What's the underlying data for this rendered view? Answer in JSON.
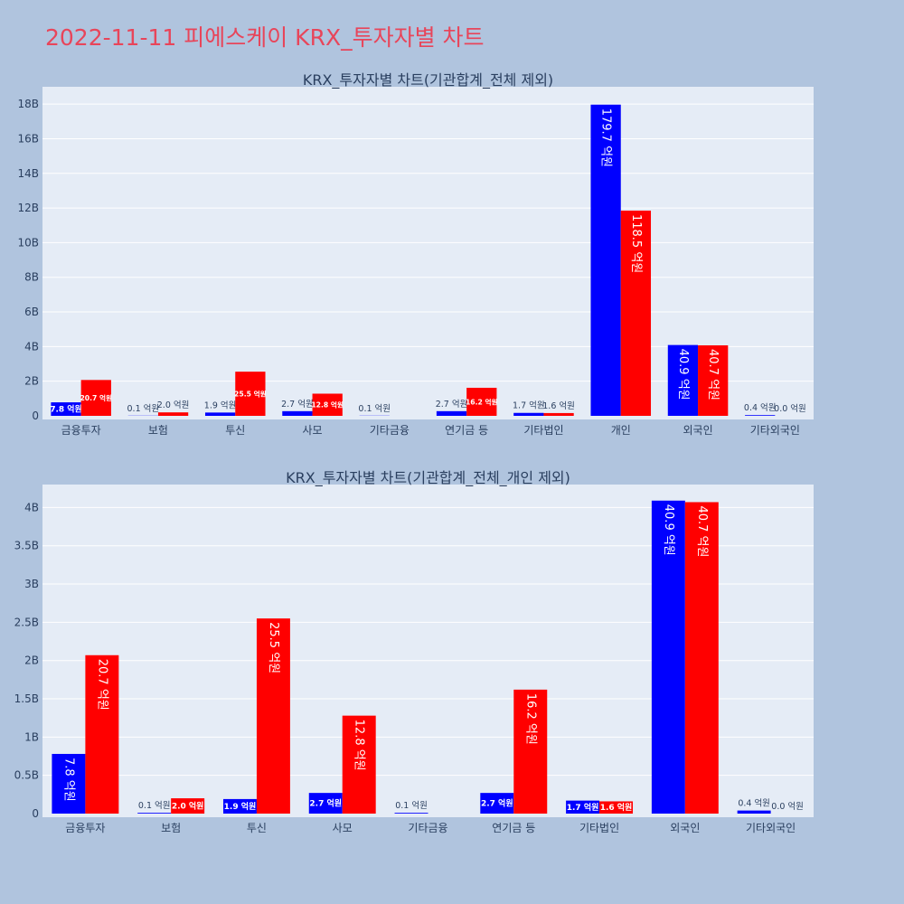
{
  "page_title": "2022-11-11 피에스케이 KRX_투자자별 차트",
  "colors": {
    "series_a": "#0000ff",
    "series_b": "#ff0000",
    "plot_bg": "#e5ecf6",
    "page_bg": "#b0c4de",
    "title": "#e8455a"
  },
  "chart_data": [
    {
      "type": "bar",
      "title": "KRX_투자자별 차트(기관합계_전체 제외)",
      "categories": [
        "금융투자",
        "보험",
        "투신",
        "사모",
        "기타금융",
        "연기금 등",
        "기타법인",
        "개인",
        "외국인",
        "기타외국인"
      ],
      "ylim": [
        0,
        19
      ],
      "yticks": [
        0,
        2,
        4,
        6,
        8,
        10,
        12,
        14,
        16,
        18
      ],
      "ytick_labels": [
        "0",
        "2B",
        "4B",
        "6B",
        "8B",
        "10B",
        "12B",
        "14B",
        "16B",
        "18B"
      ],
      "grid": true,
      "series": [
        {
          "values": [
            0.78,
            0.01,
            0.19,
            0.27,
            0.01,
            0.27,
            0.17,
            17.97,
            4.09,
            0.04
          ],
          "labels": [
            "7.8 억원",
            "0.1 억원",
            "1.9 억원",
            "2.7 억원",
            "0.1 억원",
            "2.7 억원",
            "1.7 억원",
            "179.7 억원",
            "40.9 억원",
            "0.4 억원"
          ]
        },
        {
          "values": [
            2.07,
            0.2,
            2.55,
            1.28,
            0,
            1.62,
            0.16,
            11.85,
            4.07,
            0.0
          ],
          "labels": [
            "20.7 억원",
            "2.0 억원",
            "25.5 억원",
            "12.8 억원",
            "",
            "16.2 억원",
            "1.6 억원",
            "118.5 억원",
            "40.7 억원",
            "0.0 억원"
          ]
        }
      ]
    },
    {
      "type": "bar",
      "title": "KRX_투자자별 차트(기관합계_전체_개인 제외)",
      "categories": [
        "금융투자",
        "보험",
        "투신",
        "사모",
        "기타금융",
        "연기금 등",
        "기타법인",
        "외국인",
        "기타외국인"
      ],
      "ylim": [
        0,
        4.3
      ],
      "yticks": [
        0,
        0.5,
        1,
        1.5,
        2,
        2.5,
        3,
        3.5,
        4
      ],
      "ytick_labels": [
        "0",
        "0.5B",
        "1B",
        "1.5B",
        "2B",
        "2.5B",
        "3B",
        "3.5B",
        "4B"
      ],
      "grid": true,
      "series": [
        {
          "values": [
            0.78,
            0.01,
            0.19,
            0.27,
            0.01,
            0.27,
            0.17,
            4.09,
            0.04
          ],
          "labels": [
            "7.8 억원",
            "0.1 억원",
            "1.9 억원",
            "2.7 억원",
            "0.1 억원",
            "2.7 억원",
            "1.7 억원",
            "40.9 억원",
            "0.4 억원"
          ]
        },
        {
          "values": [
            2.07,
            0.2,
            2.55,
            1.28,
            0,
            1.62,
            0.16,
            4.07,
            0.0
          ],
          "labels": [
            "20.7 억원",
            "2.0 억원",
            "25.5 억원",
            "12.8 억원",
            "",
            "16.2 억원",
            "1.6 억원",
            "40.7 억원",
            "0.0 억원"
          ]
        }
      ]
    }
  ]
}
